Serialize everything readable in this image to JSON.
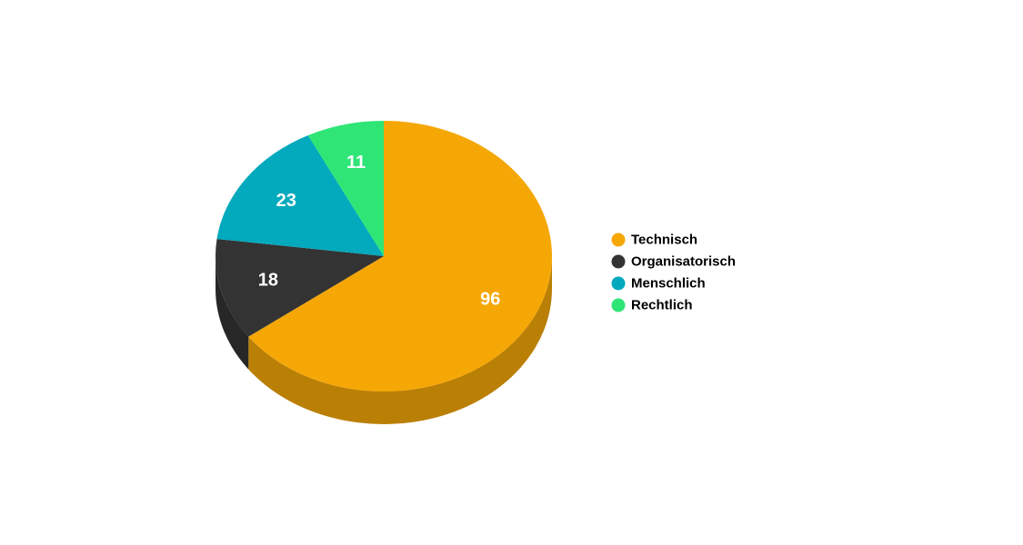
{
  "chart_data": {
    "type": "pie",
    "style": "3d",
    "title": "",
    "categories": [
      "Technisch",
      "Organisatorisch",
      "Menschlich",
      "Rechtlich"
    ],
    "values": [
      96,
      18,
      23,
      11
    ],
    "colors": [
      "#f5a706",
      "#333333",
      "#03a9bc",
      "#2ee576"
    ],
    "data_labels": [
      "96",
      "18",
      "23",
      "11"
    ],
    "legend_position": "right",
    "start_angle": "top, clockwise"
  }
}
